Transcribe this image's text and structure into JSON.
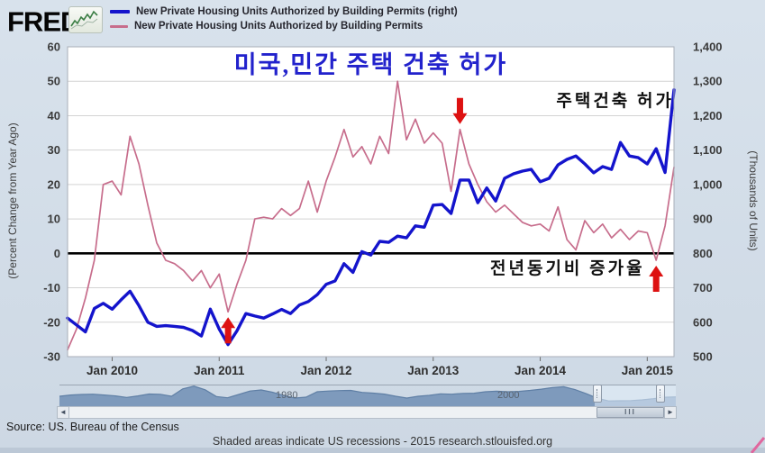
{
  "header": {
    "logo": "FRED",
    "logo_mark": "®",
    "legend": [
      {
        "label": "New Private Housing Units Authorized by Building Permits (right)",
        "color": "#1414cc"
      },
      {
        "label": "New Private Housing Units Authorized by Building Permits",
        "color": "#c76d8c"
      }
    ]
  },
  "annotations": {
    "title": "미국,민간 주택 건축 허가",
    "label_permits": "주택건축 허가",
    "label_yoy": "전년동기비 증가율"
  },
  "chart_data": {
    "type": "line",
    "x_range": [
      "Aug 2009",
      "Apr 2015"
    ],
    "frequency": "monthly",
    "grid": true,
    "arrow_color": "#dd1111",
    "left_axis": {
      "label": "(Percent Change from Year Ago)",
      "range": [
        -30,
        60
      ],
      "ticks": [
        60,
        50,
        40,
        30,
        20,
        10,
        0,
        -10,
        -20,
        -30
      ]
    },
    "right_axis": {
      "label": "(Thousands of Units)",
      "range": [
        500,
        1400
      ],
      "tick_labels": [
        "1,400",
        "1,300",
        "1,200",
        "1,100",
        "1,000",
        "900",
        "800",
        "700",
        "600",
        "500"
      ]
    },
    "x_ticks": [
      {
        "index": 5,
        "label": "Jan 2010"
      },
      {
        "index": 17,
        "label": "Jan 2011"
      },
      {
        "index": 29,
        "label": "Jan 2012"
      },
      {
        "index": 41,
        "label": "Jan 2013"
      },
      {
        "index": 53,
        "label": "Jan 2014"
      },
      {
        "index": 65,
        "label": "Jan 2015"
      }
    ],
    "series": [
      {
        "name": "New Private Housing Units Authorized by Building Permits (right)",
        "axis": "right",
        "color": "#1414cc",
        "width": 3.4,
        "values": [
          612,
          592,
          572,
          640,
          655,
          638,
          665,
          690,
          648,
          600,
          588,
          590,
          588,
          585,
          576,
          560,
          638,
          580,
          535,
          575,
          625,
          618,
          612,
          624,
          637,
          625,
          650,
          660,
          680,
          710,
          720,
          770,
          745,
          805,
          795,
          835,
          832,
          850,
          845,
          880,
          876,
          940,
          942,
          916,
          1013,
          1013,
          947,
          990,
          952,
          1018,
          1031,
          1039,
          1044,
          1008,
          1018,
          1057,
          1073,
          1083,
          1060,
          1034,
          1052,
          1044,
          1122,
          1083,
          1078,
          1060,
          1104,
          1035,
          1275
        ]
      },
      {
        "name": "New Private Housing Units Authorized by Building Permits",
        "axis": "left",
        "color": "#c76d8c",
        "width": 1.7,
        "values": [
          -28,
          -22,
          -13,
          -2,
          20,
          21,
          17,
          34,
          26,
          14,
          3,
          -2,
          -3,
          -5,
          -8,
          -5,
          -10,
          -6,
          -17,
          -9,
          -2,
          10,
          10.5,
          10,
          13,
          11,
          13,
          21,
          12,
          21,
          28,
          36,
          28,
          31,
          26,
          34,
          29,
          50,
          33,
          39,
          32,
          35,
          32,
          18,
          36,
          26,
          20,
          15,
          12,
          14,
          11.5,
          9,
          8,
          8.5,
          6.5,
          13.5,
          4,
          1,
          9.5,
          6,
          8.5,
          4.5,
          7,
          4,
          6.5,
          6,
          -2,
          8,
          25
        ]
      }
    ],
    "arrows": [
      {
        "index": 18,
        "dir": "up",
        "approx_date": "Feb 2011"
      },
      {
        "index": 44,
        "dir": "down",
        "approx_date": "Apr 2013"
      },
      {
        "index": 66,
        "dir": "up",
        "approx_date": "Feb 2015"
      }
    ]
  },
  "panner": {
    "decade_labels": [
      "1980",
      "2000"
    ],
    "values": [
      1100,
      1240,
      1300,
      1330,
      1240,
      1140,
      970,
      1140,
      1350,
      1320,
      1100,
      1920,
      2220,
      1820,
      1070,
      930,
      1300,
      1680,
      1800,
      1550,
      1190,
      900,
      1000,
      1600,
      1680,
      1730,
      1750,
      1530,
      1450,
      1340,
      1100,
      900,
      1100,
      1200,
      1370,
      1330,
      1420,
      1440,
      1600,
      1660,
      1600,
      1640,
      1750,
      1890,
      2070,
      2160,
      1840,
      1390,
      880,
      580,
      600,
      620,
      700,
      830,
      990,
      1030
    ]
  },
  "scrollbar": {
    "left_arrow": "◄",
    "right_arrow": "►",
    "thumb_grip": "III"
  },
  "footer": {
    "source": "Source: US. Bureau of the Census",
    "note": "Shaded areas indicate US recessions - 2015 research.stlouisfed.org"
  }
}
